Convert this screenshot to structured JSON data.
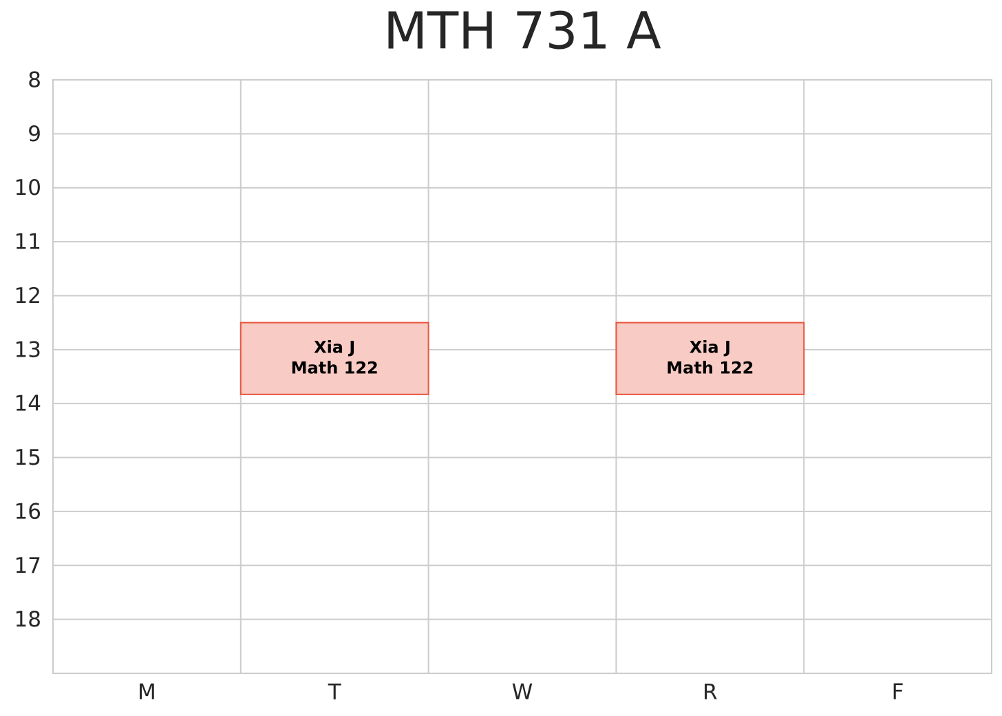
{
  "chart_data": {
    "type": "schedule",
    "title": "MTH 731 A",
    "categories": [
      "M",
      "T",
      "W",
      "R",
      "F"
    ],
    "ylim": [
      8,
      19
    ],
    "yticks": [
      8,
      9,
      10,
      11,
      12,
      13,
      14,
      15,
      16,
      17,
      18
    ],
    "grid": true,
    "inverted_y": true,
    "fill": "#f8cbc4",
    "edge": "#e8553e",
    "events": [
      {
        "day": 1,
        "start": 12.5,
        "end": 13.83,
        "instructor": "Xia J",
        "course": "Math 122"
      },
      {
        "day": 3,
        "start": 12.5,
        "end": 13.83,
        "instructor": "Xia J",
        "course": "Math 122"
      }
    ]
  }
}
